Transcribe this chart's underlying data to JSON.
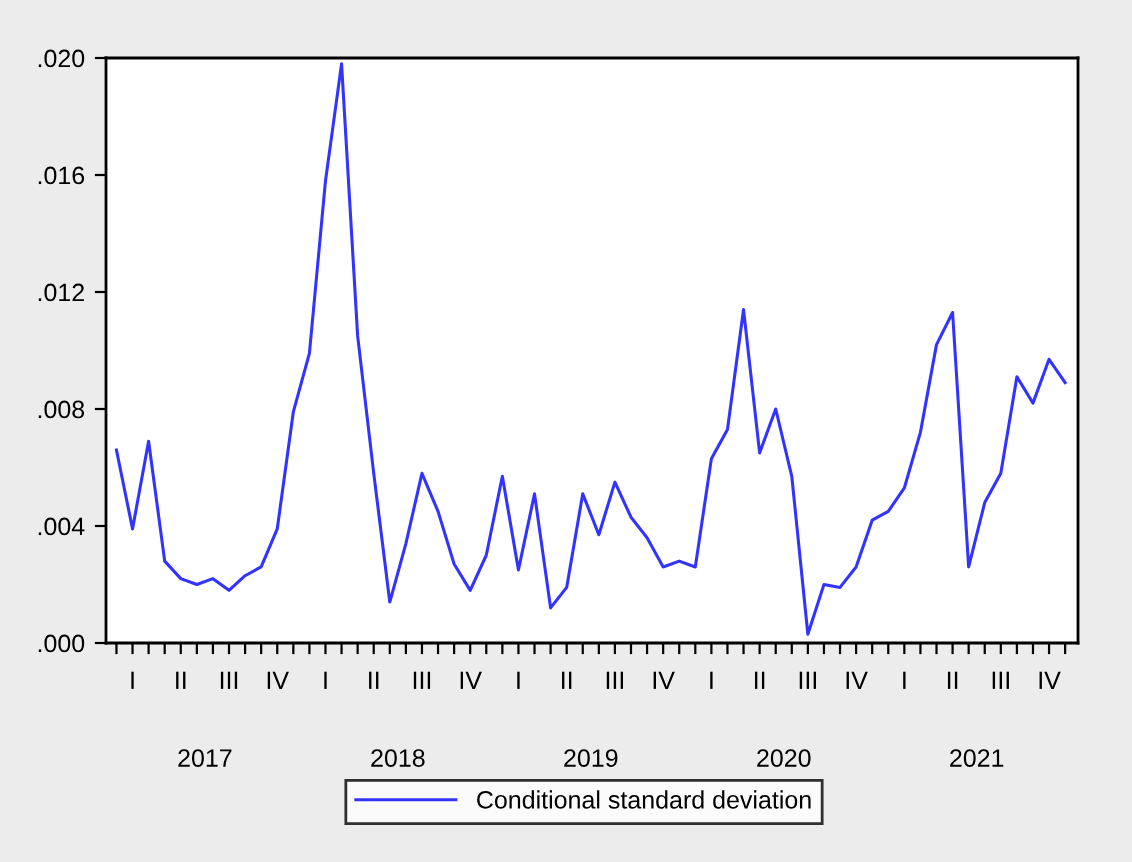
{
  "chart_data": {
    "type": "line",
    "categories": [
      null,
      "I",
      null,
      null,
      "II",
      null,
      null,
      "III",
      null,
      null,
      "IV",
      null,
      null,
      "I",
      null,
      null,
      "II",
      null,
      null,
      "III",
      null,
      null,
      "IV",
      null,
      null,
      "I",
      null,
      null,
      "II",
      null,
      null,
      "III",
      null,
      null,
      "IV",
      null,
      null,
      "I",
      null,
      null,
      "II",
      null,
      null,
      "III",
      null,
      null,
      "IV",
      null,
      null,
      "I",
      null,
      null,
      "II",
      null,
      null,
      "III",
      null,
      null,
      "IV",
      null
    ],
    "series": [
      {
        "name": "Conditional standard deviation",
        "color": "#3333ff",
        "values": [
          0.0066,
          0.0039,
          0.0069,
          0.0028,
          0.0022,
          0.002,
          0.0022,
          0.0018,
          0.0023,
          0.0026,
          0.0039,
          0.0079,
          0.0099,
          0.0158,
          0.0198,
          0.0105,
          0.0058,
          0.0014,
          0.0034,
          0.0058,
          0.0045,
          0.0027,
          0.0018,
          0.003,
          0.0057,
          0.0025,
          0.0051,
          0.0012,
          0.0019,
          0.0051,
          0.0037,
          0.0055,
          0.0043,
          0.0036,
          0.0026,
          0.0028,
          0.0026,
          0.0063,
          0.0073,
          0.0114,
          0.0065,
          0.008,
          0.0057,
          0.0003,
          0.002,
          0.0019,
          0.0026,
          0.0042,
          0.0045,
          0.0053,
          0.0072,
          0.0102,
          0.0113,
          0.0026,
          0.0048,
          0.0058,
          0.0091,
          0.0082,
          0.0097,
          0.0089
        ]
      }
    ],
    "ylim": [
      0,
      0.02
    ],
    "yticks": [
      {
        "value": 0,
        "label": ".000"
      },
      {
        "value": 0.004,
        "label": ".004"
      },
      {
        "value": 0.008,
        "label": ".008"
      },
      {
        "value": 0.012,
        "label": ".012"
      },
      {
        "value": 0.016,
        "label": ".016"
      },
      {
        "value": 0.02,
        "label": ".020"
      }
    ],
    "annotations": [
      "2017",
      "2018",
      "2019",
      "2020",
      "2021"
    ],
    "legend": "bottom",
    "grid": false,
    "marker": "none",
    "line_style": "solid"
  }
}
